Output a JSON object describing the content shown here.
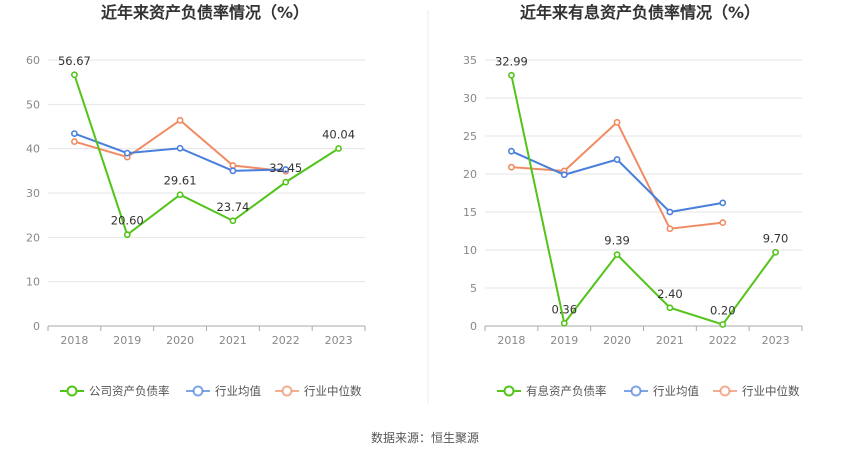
{
  "source_label": "数据来源：恒生聚源",
  "colors": {
    "company": "#52c41a",
    "avg": "#4a7fdc",
    "median": "#f08c64"
  },
  "chart_data": [
    {
      "type": "line",
      "title": "近年来资产负债率情况（%）",
      "categories": [
        "2018",
        "2019",
        "2020",
        "2021",
        "2022",
        "2023"
      ],
      "ylim": [
        0,
        60
      ],
      "yticks": [
        "0",
        "10",
        "20",
        "30",
        "40",
        "50",
        "60"
      ],
      "legend_position": "bottom",
      "series": [
        {
          "name": "公司资产负债率",
          "key": "company",
          "values": [
            56.67,
            20.6,
            29.61,
            23.74,
            32.45,
            40.04
          ],
          "labels": [
            "56.67",
            "20.60",
            "29.61",
            "23.74",
            "32.45",
            "40.04"
          ]
        },
        {
          "name": "行业均值",
          "key": "avg",
          "values": [
            43.4,
            39.0,
            40.1,
            35.0,
            35.3,
            null
          ]
        },
        {
          "name": "行业中位数",
          "key": "median",
          "values": [
            41.6,
            38.1,
            46.4,
            36.2,
            34.9,
            null
          ]
        }
      ]
    },
    {
      "type": "line",
      "title": "近年来有息资产负债率情况（%）",
      "categories": [
        "2018",
        "2019",
        "2020",
        "2021",
        "2022",
        "2023"
      ],
      "ylim": [
        0,
        35
      ],
      "yticks": [
        "0",
        "5",
        "10",
        "15",
        "20",
        "25",
        "30",
        "35"
      ],
      "legend_position": "bottom",
      "series": [
        {
          "name": "有息资产负债率",
          "key": "company",
          "values": [
            32.99,
            0.36,
            9.39,
            2.4,
            0.2,
            9.7
          ],
          "labels": [
            "32.99",
            "0.36",
            "9.39",
            "2.40",
            "0.20",
            "9.70"
          ]
        },
        {
          "name": "行业均值",
          "key": "avg",
          "values": [
            23.0,
            19.9,
            21.9,
            15.0,
            16.2,
            null
          ]
        },
        {
          "name": "行业中位数",
          "key": "median",
          "values": [
            20.9,
            20.4,
            26.8,
            12.8,
            13.6,
            null
          ]
        }
      ]
    }
  ]
}
